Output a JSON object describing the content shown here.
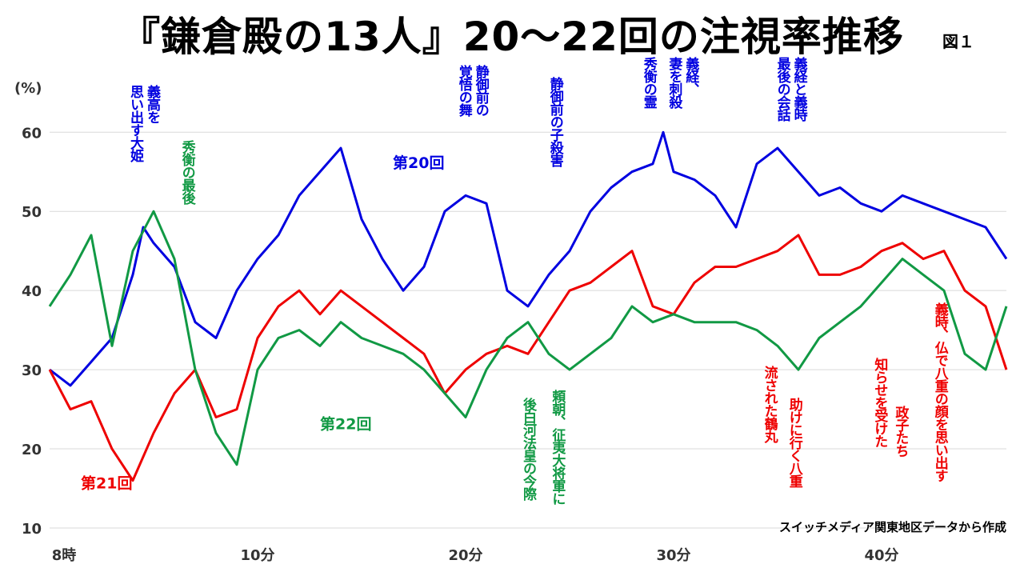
{
  "title": "『鎌倉殿の13人』20～22回の注視率推移",
  "figure_label": "図１",
  "source": "スイッチメディア関東地区データから作成",
  "colors": {
    "ep20": "#0000e0",
    "ep21": "#ee0000",
    "ep22": "#119944"
  },
  "chart_data": {
    "type": "line",
    "ylabel": "(%)",
    "ylim": [
      10,
      67
    ],
    "yticks": [
      10,
      20,
      30,
      40,
      50,
      60
    ],
    "xlim": [
      0,
      46
    ],
    "xticks": [
      {
        "v": 0,
        "label": "8時"
      },
      {
        "v": 10,
        "label": "10分"
      },
      {
        "v": 20,
        "label": "20分"
      },
      {
        "v": 30,
        "label": "30分"
      },
      {
        "v": 40,
        "label": "40分"
      }
    ],
    "grid": "horizontal",
    "series": [
      {
        "name": "第20回",
        "color": "#0000e0",
        "x": [
          0,
          1,
          2,
          3,
          4,
          4.5,
          5,
          6,
          7,
          8,
          9,
          10,
          11,
          12,
          13,
          14,
          15,
          16,
          17,
          18,
          19,
          20,
          21,
          22,
          23,
          24,
          25,
          26,
          27,
          28,
          29,
          29.5,
          30,
          31,
          32,
          33,
          34,
          35,
          36,
          37,
          38,
          39,
          40,
          41,
          42,
          43,
          44,
          45,
          46
        ],
        "y": [
          30,
          28,
          31,
          34,
          42,
          48,
          46,
          43,
          36,
          34,
          40,
          44,
          47,
          52,
          55,
          58,
          49,
          44,
          40,
          43,
          50,
          52,
          51,
          40,
          38,
          42,
          45,
          50,
          53,
          55,
          56,
          60,
          55,
          54,
          52,
          48,
          56,
          58,
          55,
          52,
          53,
          51,
          50,
          52,
          51,
          50,
          49,
          48,
          44
        ]
      },
      {
        "name": "第21回",
        "color": "#ee0000",
        "x": [
          0,
          1,
          2,
          3,
          4,
          5,
          6,
          7,
          8,
          9,
          10,
          11,
          12,
          13,
          14,
          15,
          16,
          17,
          18,
          19,
          20,
          21,
          22,
          23,
          24,
          25,
          26,
          27,
          28,
          29,
          30,
          31,
          32,
          33,
          34,
          35,
          36,
          37,
          38,
          39,
          40,
          41,
          42,
          43,
          44,
          45,
          46
        ],
        "y": [
          30,
          25,
          26,
          20,
          16,
          22,
          27,
          30,
          24,
          25,
          34,
          38,
          40,
          37,
          40,
          38,
          36,
          34,
          32,
          27,
          30,
          32,
          33,
          32,
          36,
          40,
          41,
          43,
          45,
          38,
          37,
          41,
          43,
          43,
          44,
          45,
          47,
          42,
          42,
          43,
          45,
          46,
          44,
          45,
          40,
          38,
          30
        ]
      },
      {
        "name": "第22回",
        "color": "#119944",
        "x": [
          0,
          1,
          2,
          3,
          4,
          5,
          6,
          7,
          8,
          9,
          10,
          11,
          12,
          13,
          14,
          15,
          16,
          17,
          18,
          19,
          20,
          21,
          22,
          23,
          24,
          25,
          26,
          27,
          28,
          29,
          30,
          31,
          32,
          33,
          34,
          35,
          36,
          37,
          38,
          39,
          40,
          41,
          42,
          43,
          44,
          45,
          46
        ],
        "y": [
          38,
          42,
          47,
          33,
          45,
          50,
          44,
          30,
          22,
          18,
          30,
          34,
          35,
          33,
          36,
          34,
          33,
          32,
          30,
          27,
          24,
          30,
          34,
          36,
          32,
          30,
          32,
          34,
          38,
          36,
          37,
          36,
          36,
          36,
          35,
          33,
          30,
          34,
          36,
          38,
          41,
          44,
          42,
          40,
          32,
          30,
          38
        ]
      }
    ],
    "series_labels": [
      {
        "text": "第20回",
        "series": 0,
        "x": 16.5,
        "y": 55.5
      },
      {
        "text": "第21回",
        "series": 1,
        "x": 1.5,
        "y": 15
      },
      {
        "text": "第22回",
        "series": 2,
        "x": 13,
        "y": 22.5
      }
    ]
  },
  "annotations": [
    {
      "lines": [
        "義高を",
        "思い出す大姫"
      ],
      "color": "#0000e0",
      "x": 4.5,
      "yTop": 66
    },
    {
      "lines": [
        "秀衡の最後"
      ],
      "color": "#119944",
      "x": 6.6,
      "yTop": 59
    },
    {
      "lines": [
        "静御前の",
        "覚悟の舞"
      ],
      "color": "#0000e0",
      "x": 20.3,
      "yTop": 68.5
    },
    {
      "lines": [
        "静御前の子殺害"
      ],
      "color": "#0000e0",
      "x": 24.3,
      "yTop": 67
    },
    {
      "lines": [
        "秀衡の霊"
      ],
      "color": "#0000e0",
      "x": 28.8,
      "yTop": 69.5
    },
    {
      "lines": [
        "義経、",
        "妻を刺殺"
      ],
      "color": "#0000e0",
      "x": 30.4,
      "yTop": 69.5
    },
    {
      "lines": [
        "義経と義時",
        "最後の会話"
      ],
      "color": "#0000e0",
      "x": 35.6,
      "yTop": 69.5
    },
    {
      "lines": [
        "後白河法皇の今際"
      ],
      "color": "#119944",
      "x": 23,
      "yTop": 26.5
    },
    {
      "lines": [
        "頼朝、征夷大将軍に"
      ],
      "color": "#119944",
      "x": 24.4,
      "yTop": 27.5
    },
    {
      "lines": [
        "流された鶴丸"
      ],
      "color": "#ee0000",
      "x": 34.6,
      "yTop": 30.5
    },
    {
      "lines": [
        "助けに行く八重"
      ],
      "color": "#ee0000",
      "x": 35.8,
      "yTop": 26.5
    },
    {
      "lines": [
        "知らせを受けた"
      ],
      "color": "#ee0000",
      "x": 39.9,
      "yTop": 31.5
    },
    {
      "lines": [
        "政子たち"
      ],
      "color": "#ee0000",
      "x": 40.9,
      "yTop": 25.5
    },
    {
      "lines": [
        "義時、仏で八重の顔を思い出す"
      ],
      "color": "#ee0000",
      "x": 42.8,
      "yTop": 38.5
    }
  ]
}
